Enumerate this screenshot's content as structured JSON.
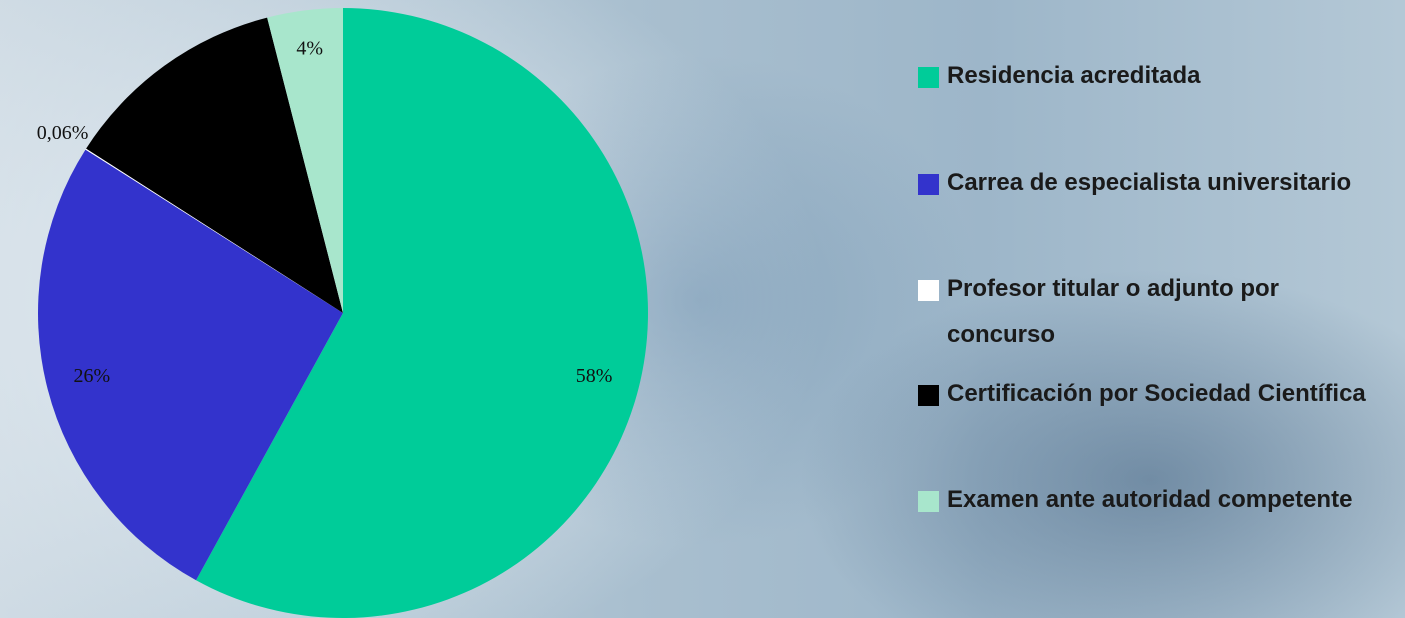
{
  "chart_data": {
    "type": "pie",
    "categories": [
      "Residencia acreditada",
      "Carrea de especialista universitario",
      "Profesor titular o adjunto por concurso",
      "Certificación por Sociedad Científica",
      "Examen ante autoridad competente"
    ],
    "values": [
      58,
      26,
      0.06,
      11.94,
      4
    ],
    "value_labels": [
      "58%",
      "26%",
      "0,06%",
      null,
      "4%"
    ],
    "colors": [
      "#00cc99",
      "#3333cc",
      "#ffffff",
      "#000000",
      "#a8e6cc"
    ],
    "legend": "right"
  }
}
